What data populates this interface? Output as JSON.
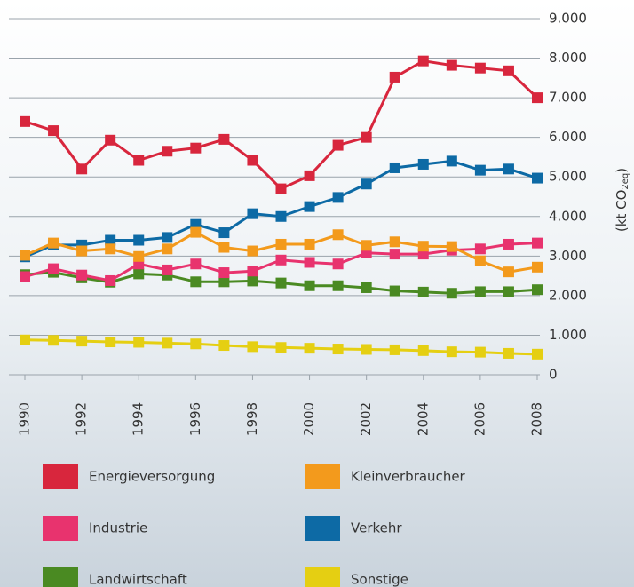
{
  "chart_data": {
    "type": "line",
    "y_label": [
      "(kt CO",
      "2eq",
      ")"
    ],
    "x": [
      1990,
      1991,
      1992,
      1993,
      1994,
      1995,
      1996,
      1997,
      1998,
      1999,
      2000,
      2001,
      2002,
      2003,
      2004,
      2005,
      2006,
      2007,
      2008
    ],
    "xlim": [
      1990,
      2008
    ],
    "xticks": [
      1990,
      1992,
      1994,
      1996,
      1998,
      2000,
      2002,
      2004,
      2006,
      2008
    ],
    "ylim": [
      0,
      9000
    ],
    "yticks": [
      0,
      {
        "value": 1000,
        "label": "1.000"
      },
      {
        "value": 2000,
        "label": "2.000"
      },
      {
        "value": 3000,
        "label": "3.000"
      },
      {
        "value": 4000,
        "label": "4.000"
      },
      {
        "value": 5000,
        "label": "5.000"
      },
      {
        "value": 6000,
        "label": "6.000"
      },
      {
        "value": 7000,
        "label": "7.000"
      },
      {
        "value": 8000,
        "label": "8.000"
      },
      {
        "value": 9000,
        "label": "9.000"
      }
    ],
    "grid": true,
    "series": [
      {
        "name": "Energieversorgung",
        "color": "#d8263d",
        "values": [
          6400,
          6170,
          5200,
          5930,
          5420,
          5650,
          5730,
          5950,
          5420,
          4700,
          5030,
          5800,
          6000,
          7520,
          7930,
          7820,
          7750,
          7680,
          7000
        ]
      },
      {
        "name": "Kleinverbraucher",
        "color": "#f39a1c",
        "values": [
          3020,
          3330,
          3130,
          3180,
          2990,
          3180,
          3600,
          3220,
          3130,
          3300,
          3300,
          3540,
          3270,
          3360,
          3250,
          3240,
          2880,
          2600,
          2720
        ]
      },
      {
        "name": "Industrie",
        "color": "#e8336e",
        "values": [
          2480,
          2680,
          2520,
          2380,
          2800,
          2650,
          2800,
          2580,
          2620,
          2900,
          2840,
          2800,
          3080,
          3050,
          3050,
          3150,
          3180,
          3300,
          3330
        ]
      },
      {
        "name": "Verkehr",
        "color": "#0d6aa5",
        "values": [
          2980,
          3280,
          3280,
          3400,
          3400,
          3470,
          3800,
          3590,
          4070,
          4000,
          4250,
          4480,
          4820,
          5230,
          5320,
          5400,
          5170,
          5200,
          4970
        ]
      },
      {
        "name": "Landwirtschaft",
        "color": "#4a8a22",
        "values": [
          2530,
          2590,
          2450,
          2340,
          2550,
          2520,
          2350,
          2350,
          2370,
          2320,
          2250,
          2250,
          2200,
          2120,
          2090,
          2060,
          2100,
          2100,
          2150
        ]
      },
      {
        "name": "Sonstige",
        "color": "#e5cf12",
        "values": [
          880,
          870,
          850,
          830,
          820,
          800,
          780,
          740,
          710,
          690,
          670,
          650,
          640,
          630,
          610,
          580,
          570,
          540,
          520
        ]
      }
    ]
  }
}
